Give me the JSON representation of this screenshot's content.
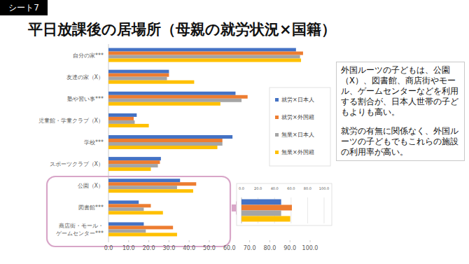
{
  "sheet_label": "シート7",
  "chart_data": [
    {
      "type": "bar",
      "orientation": "horizontal",
      "title": "平日放課後の居場所（母親の就労状況×国籍）",
      "annotation": [
        "外国ルーツの子どもは、公園（X）、図書館、商店街やモール、ゲームセンターなどを利用する割合が、日本人世帯の子どもよりも高い。",
        "就労の有無に関係なく、外国ルーツの子どもでもこれらの施設の利用率が高い。"
      ],
      "categories": [
        "自分の家***",
        "友達の家（X）",
        "塾や習い事***",
        "児童館・学童クラブ（X）",
        "学校***",
        "スポーツクラブ（X）",
        "公園（X）",
        "図書館***",
        "商店街・モール・\nゲームセンター***"
      ],
      "series": [
        {
          "name": "就労×日本人",
          "color": "#4472c4",
          "values": [
            93,
            30,
            63,
            14,
            61.5,
            26,
            35.5,
            15,
            17.5
          ]
        },
        {
          "name": "就労×外国籍",
          "color": "#ed7d31",
          "values": [
            96.5,
            30,
            69,
            12.5,
            56.5,
            25.5,
            43.5,
            21,
            32
          ]
        },
        {
          "name": "無業×日本人",
          "color": "#a5a5a5",
          "values": [
            95,
            29,
            66,
            13,
            56.5,
            24.5,
            34,
            17.5,
            18.5
          ]
        },
        {
          "name": "無業×外国籍",
          "color": "#ffc000",
          "values": [
            95.5,
            42.5,
            55.5,
            20,
            54,
            21,
            42,
            27,
            34
          ]
        }
      ],
      "xlim": [
        0,
        100
      ],
      "xticks": [
        {
          "value": 0,
          "label": "0.0"
        },
        {
          "value": 10,
          "label": "10.0"
        },
        {
          "value": 20,
          "label": "20.0"
        },
        {
          "value": 30,
          "label": "30.0"
        },
        {
          "value": 40,
          "label": "40.0"
        },
        {
          "value": 50,
          "label": "50.0"
        },
        {
          "value": 60,
          "label": "60.0"
        },
        {
          "value": 70,
          "label": "70.0"
        },
        {
          "value": 80,
          "label": "80.0"
        },
        {
          "value": 90,
          "label": "90.0"
        },
        {
          "value": 100,
          "label": "100.0"
        }
      ],
      "grid": false,
      "legend": "right"
    },
    {
      "type": "bar",
      "orientation": "horizontal",
      "categories": [
        null
      ],
      "series": [
        {
          "color": "#4472c4",
          "values": [
            48
          ]
        },
        {
          "color": "#ed7d31",
          "values": [
            61
          ]
        },
        {
          "color": "#a5a5a5",
          "values": [
            48
          ]
        },
        {
          "color": "#ffc000",
          "values": [
            59
          ]
        }
      ],
      "xlim": [
        0,
        100
      ],
      "xticks": [
        {
          "value": 0,
          "label": "0.0"
        },
        {
          "value": 20,
          "label": "20.0"
        },
        {
          "value": 40,
          "label": "40.0"
        },
        {
          "value": 60,
          "label": "60.0"
        },
        {
          "value": 80,
          "label": "80.0"
        },
        {
          "value": 100,
          "label": "100.0"
        }
      ],
      "grid": true
    }
  ]
}
